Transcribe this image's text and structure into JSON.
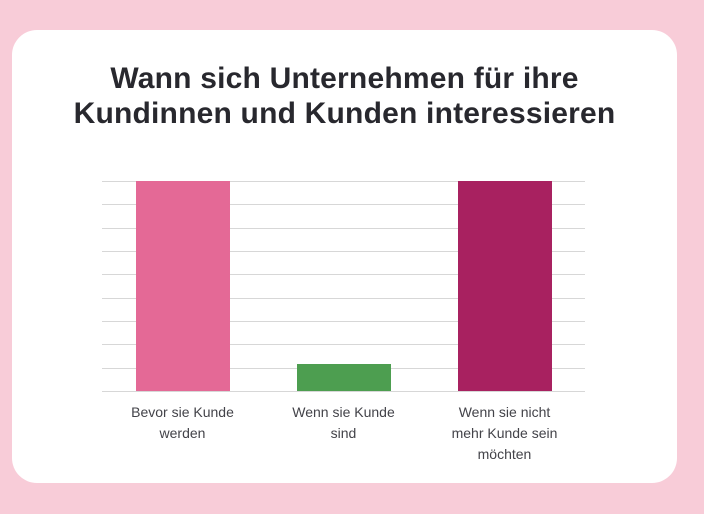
{
  "theme": {
    "page_background": "#f8ccd8",
    "card_background": "#ffffff",
    "title_color": "#28282e",
    "label_color": "#434349",
    "gridline_color": "#d7d7d7"
  },
  "chart_data": {
    "type": "bar",
    "title": "Wann sich Unternehmen für ihre Kundinnen und Kunden interessieren",
    "categories": [
      "Bevor sie Kunde\nwerden",
      "Wenn sie Kunde\nsind",
      "Wenn sie nicht\nmehr Kunde sein\nmöchten"
    ],
    "values": [
      100,
      13,
      100
    ],
    "bar_colors": [
      "#e46996",
      "#4d9e50",
      "#a82160"
    ],
    "xlabel": "",
    "ylabel": "",
    "ylim": [
      0,
      100
    ],
    "gridline_count": 10,
    "grid": "horizontal",
    "legend_position": "none",
    "value_labels_shown": false
  }
}
